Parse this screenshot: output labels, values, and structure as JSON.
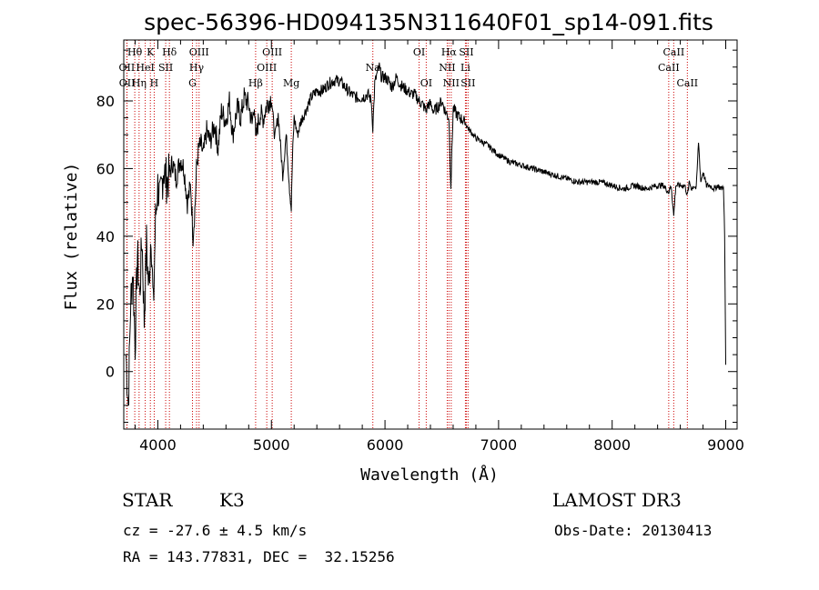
{
  "chart_data": {
    "type": "line",
    "title": "spec-56396-HD094135N311640F01_sp14-091.fits",
    "xlabel": "Wavelength (Å)",
    "ylabel": "Flux (relative)",
    "xlim": [
      3700,
      9100
    ],
    "ylim": [
      -17,
      98
    ],
    "xticks": [
      4000,
      5000,
      6000,
      7000,
      8000,
      9000
    ],
    "yticks": [
      0,
      20,
      40,
      60,
      80
    ],
    "series": [
      {
        "name": "spectrum",
        "color": "#000000",
        "x": [
          3720,
          3740,
          3760,
          3780,
          3800,
          3820,
          3840,
          3860,
          3880,
          3900,
          3920,
          3940,
          3960,
          3980,
          4000,
          4020,
          4050,
          4080,
          4100,
          4130,
          4160,
          4200,
          4230,
          4260,
          4290,
          4310,
          4330,
          4340,
          4360,
          4380,
          4400,
          4430,
          4460,
          4500,
          4530,
          4560,
          4600,
          4630,
          4660,
          4700,
          4730,
          4760,
          4800,
          4830,
          4850,
          4861,
          4880,
          4900,
          4930,
          4960,
          5000,
          5030,
          5060,
          5100,
          5130,
          5160,
          5175,
          5185,
          5200,
          5230,
          5260,
          5300,
          5350,
          5400,
          5450,
          5500,
          5550,
          5600,
          5650,
          5700,
          5750,
          5800,
          5850,
          5880,
          5893,
          5910,
          5930,
          5950,
          5970,
          6000,
          6030,
          6060,
          6100,
          6130,
          6160,
          6200,
          6230,
          6260,
          6300,
          6330,
          6363,
          6380,
          6400,
          6430,
          6460,
          6500,
          6530,
          6563,
          6580,
          6600,
          6630,
          6660,
          6700,
          6730,
          6800,
          6900,
          7000,
          7100,
          7200,
          7300,
          7400,
          7500,
          7600,
          7700,
          7800,
          7900,
          8000,
          8100,
          8200,
          8300,
          8400,
          8450,
          8498,
          8520,
          8542,
          8560,
          8600,
          8640,
          8662,
          8680,
          8700,
          8720,
          8740,
          8760,
          8780,
          8800,
          8830,
          8860,
          8900,
          8930,
          8960,
          8980,
          8990,
          9000
        ],
        "y": [
          5,
          -10,
          20,
          30,
          8,
          35,
          22,
          40,
          15,
          38,
          24,
          42,
          18,
          45,
          55,
          50,
          60,
          56,
          58,
          62,
          57,
          63,
          60,
          50,
          55,
          40,
          50,
          60,
          66,
          67,
          64,
          71,
          68,
          73,
          66,
          77,
          74,
          80,
          70,
          78,
          75,
          81,
          79,
          73,
          80,
          68,
          73,
          76,
          75,
          79,
          81,
          69,
          76,
          58,
          70,
          54,
          48,
          63,
          75,
          70,
          74,
          77,
          81,
          83,
          83,
          85,
          86,
          86,
          84,
          82,
          81,
          81,
          82,
          80,
          72,
          85,
          88,
          90,
          87,
          87,
          86,
          84,
          87,
          85,
          84,
          83,
          82,
          82,
          80,
          79,
          77,
          79,
          79,
          77,
          78,
          80,
          77,
          75,
          55,
          78,
          76,
          75,
          74,
          72,
          69,
          67,
          64,
          62,
          61,
          60,
          59,
          58,
          57,
          56,
          56,
          56,
          55,
          54,
          55,
          54,
          55,
          55,
          53,
          55,
          46,
          55,
          55,
          55,
          52,
          56,
          54,
          55,
          54,
          68,
          56,
          59,
          55,
          55,
          54,
          55,
          54,
          55,
          40,
          2
        ]
      }
    ],
    "lines": [
      {
        "label": "Hθ",
        "x": 3797,
        "row": 0
      },
      {
        "label": "OII",
        "x": 3727,
        "row": 1
      },
      {
        "label": "OII",
        "x": 3729,
        "row": 2
      },
      {
        "label": "Hη",
        "x": 3835,
        "row": 2
      },
      {
        "label": "HeI",
        "x": 3889,
        "row": 1
      },
      {
        "label": "K",
        "x": 3934,
        "row": 0
      },
      {
        "label": "SII",
        "x": 4069,
        "row": 1
      },
      {
        "label": "H",
        "x": 3968,
        "row": 2
      },
      {
        "label": "Hδ",
        "x": 4102,
        "row": 0
      },
      {
        "label": "OIII",
        "x": 4363,
        "row": 0
      },
      {
        "label": "Hγ",
        "x": 4341,
        "row": 1
      },
      {
        "label": "G",
        "x": 4305,
        "row": 2
      },
      {
        "label": "Hβ",
        "x": 4861,
        "row": 2
      },
      {
        "label": "OIII",
        "x": 5007,
        "row": 0
      },
      {
        "label": "OIII",
        "x": 4959,
        "row": 1
      },
      {
        "label": "Mg",
        "x": 5175,
        "row": 2
      },
      {
        "label": "Na",
        "x": 5893,
        "row": 1
      },
      {
        "label": "OI",
        "x": 6300,
        "row": 0
      },
      {
        "label": "OI",
        "x": 6363,
        "row": 2
      },
      {
        "label": "Hα",
        "x": 6563,
        "row": 0
      },
      {
        "label": "SII",
        "x": 6716,
        "row": 0
      },
      {
        "label": "NII",
        "x": 6548,
        "row": 1
      },
      {
        "label": "Li",
        "x": 6708,
        "row": 1
      },
      {
        "label": "NII",
        "x": 6583,
        "row": 2
      },
      {
        "label": "SII",
        "x": 6731,
        "row": 2
      },
      {
        "label": "CaII",
        "x": 8542,
        "row": 0
      },
      {
        "label": "CaII",
        "x": 8498,
        "row": 1
      },
      {
        "label": "CaII",
        "x": 8662,
        "row": 2
      }
    ],
    "line_color": "#cc0000",
    "legend": "none"
  },
  "info": {
    "class": "STAR",
    "subclass": "K3",
    "survey": "LAMOST DR3",
    "cz": "cz = -27.6 ± 4.5 km/s",
    "obs_date": "Obs-Date: 20130413",
    "coords": "RA = 143.77831, DEC =  32.15256"
  }
}
